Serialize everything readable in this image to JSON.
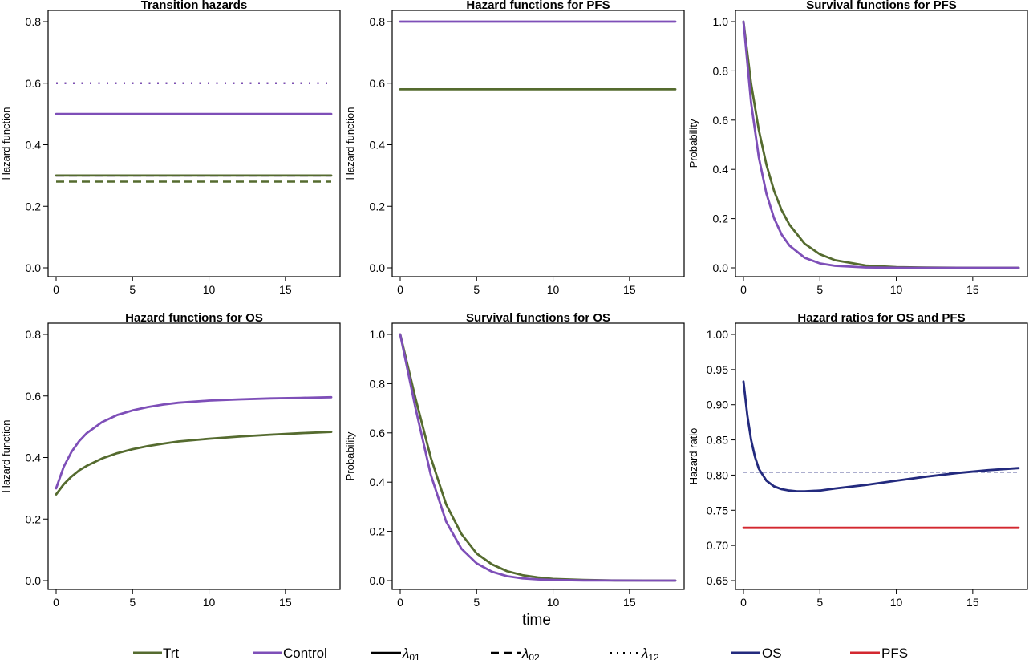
{
  "colors": {
    "trt": "#556b2f",
    "control": "#7e4fb8",
    "os": "#232a7e",
    "pfs": "#d3272f"
  },
  "xlabel": "time",
  "legend": {
    "trt": "Trt",
    "control": "Control",
    "lambda01_sym": "λ",
    "lambda01_sub": "01",
    "lambda02_sym": "λ",
    "lambda02_sub": "02",
    "lambda12_sym": "λ",
    "lambda12_sub": "12",
    "os": "OS",
    "pfs": "PFS"
  },
  "chart_data": [
    {
      "type": "line",
      "title": "Transition hazards",
      "ylabel": "Hazard function",
      "xlim": [
        0,
        18
      ],
      "ylim": [
        0,
        0.8
      ],
      "xticks": [
        0,
        5,
        10,
        15
      ],
      "yticks": [
        0.0,
        0.2,
        0.4,
        0.6,
        0.8
      ],
      "ytick_labels": [
        "0.0",
        "0.2",
        "0.4",
        "0.6",
        "0.8"
      ],
      "series": [
        {
          "group": "trt",
          "style": "dotted",
          "x": [
            0,
            18
          ],
          "y": [
            0.6,
            0.6
          ]
        },
        {
          "group": "control",
          "style": "dotted",
          "x": [
            0,
            18
          ],
          "y": [
            0.6,
            0.6
          ]
        },
        {
          "group": "control",
          "style": "solid",
          "x": [
            0,
            18
          ],
          "y": [
            0.5,
            0.5
          ]
        },
        {
          "group": "control",
          "style": "dashed",
          "x": [
            0,
            18
          ],
          "y": [
            0.3,
            0.3
          ]
        },
        {
          "group": "trt",
          "style": "solid",
          "x": [
            0,
            18
          ],
          "y": [
            0.3,
            0.3
          ]
        },
        {
          "group": "trt",
          "style": "dashed",
          "x": [
            0,
            18
          ],
          "y": [
            0.28,
            0.28
          ]
        }
      ]
    },
    {
      "type": "line",
      "title": "Hazard functions for PFS",
      "ylabel": "Hazard function",
      "xlim": [
        0,
        18
      ],
      "ylim": [
        0,
        0.8
      ],
      "xticks": [
        0,
        5,
        10,
        15
      ],
      "yticks": [
        0.0,
        0.2,
        0.4,
        0.6,
        0.8
      ],
      "ytick_labels": [
        "0.0",
        "0.2",
        "0.4",
        "0.6",
        "0.8"
      ],
      "series": [
        {
          "group": "control",
          "style": "solid",
          "x": [
            0,
            18
          ],
          "y": [
            0.8,
            0.8
          ]
        },
        {
          "group": "trt",
          "style": "solid",
          "x": [
            0,
            18
          ],
          "y": [
            0.58,
            0.58
          ]
        }
      ]
    },
    {
      "type": "line",
      "title": "Survival functions for PFS",
      "ylabel": "Probability",
      "xlim": [
        0,
        18
      ],
      "ylim": [
        0,
        1
      ],
      "xticks": [
        0,
        5,
        10,
        15
      ],
      "yticks": [
        0.0,
        0.2,
        0.4,
        0.6,
        0.8,
        1.0
      ],
      "ytick_labels": [
        "0.0",
        "0.2",
        "0.4",
        "0.6",
        "0.8",
        "1.0"
      ],
      "series": [
        {
          "group": "trt",
          "style": "solid",
          "x": [
            0,
            0.5,
            1,
            1.5,
            2,
            2.5,
            3,
            4,
            5,
            6,
            8,
            10,
            12,
            14,
            16,
            18
          ],
          "y": [
            1.0,
            0.748,
            0.56,
            0.419,
            0.313,
            0.234,
            0.176,
            0.098,
            0.055,
            0.031,
            0.0096,
            0.003,
            0.0009,
            0.0003,
            0.0001,
            0.0
          ]
        },
        {
          "group": "control",
          "style": "solid",
          "x": [
            0,
            0.5,
            1,
            1.5,
            2,
            2.5,
            3,
            4,
            5,
            6,
            8,
            10,
            12,
            14,
            16,
            18
          ],
          "y": [
            1.0,
            0.67,
            0.449,
            0.301,
            0.202,
            0.135,
            0.091,
            0.041,
            0.018,
            0.008,
            0.0017,
            0.0003,
            0.0001,
            0.0,
            0.0,
            0.0
          ]
        }
      ]
    },
    {
      "type": "line",
      "title": "Hazard functions for OS",
      "ylabel": "Hazard function",
      "xlim": [
        0,
        18
      ],
      "ylim": [
        0,
        0.8
      ],
      "xticks": [
        0,
        5,
        10,
        15
      ],
      "yticks": [
        0.0,
        0.2,
        0.4,
        0.6,
        0.8
      ],
      "ytick_labels": [
        "0.0",
        "0.2",
        "0.4",
        "0.6",
        "0.8"
      ],
      "series": [
        {
          "group": "control",
          "style": "solid",
          "x": [
            0,
            0.5,
            1,
            1.5,
            2,
            3,
            4,
            5,
            6,
            7,
            8,
            10,
            12,
            14,
            16,
            18
          ],
          "y": [
            0.3,
            0.37,
            0.418,
            0.453,
            0.479,
            0.515,
            0.538,
            0.553,
            0.564,
            0.572,
            0.578,
            0.585,
            0.589,
            0.592,
            0.594,
            0.596
          ]
        },
        {
          "group": "trt",
          "style": "solid",
          "x": [
            0,
            0.5,
            1,
            1.5,
            2,
            3,
            4,
            5,
            6,
            7,
            8,
            10,
            12,
            14,
            16,
            18
          ],
          "y": [
            0.28,
            0.313,
            0.338,
            0.358,
            0.373,
            0.397,
            0.414,
            0.427,
            0.437,
            0.445,
            0.452,
            0.461,
            0.468,
            0.474,
            0.479,
            0.483
          ]
        }
      ]
    },
    {
      "type": "line",
      "title": "Survival functions for OS",
      "ylabel": "Probability",
      "xlim": [
        0,
        18
      ],
      "ylim": [
        0,
        1
      ],
      "xticks": [
        0,
        5,
        10,
        15
      ],
      "yticks": [
        0.0,
        0.2,
        0.4,
        0.6,
        0.8,
        1.0
      ],
      "ytick_labels": [
        "0.0",
        "0.2",
        "0.4",
        "0.6",
        "0.8",
        "1.0"
      ],
      "series": [
        {
          "group": "trt",
          "style": "solid",
          "x": [
            0,
            1,
            2,
            3,
            4,
            5,
            6,
            7,
            8,
            9,
            10,
            12,
            14,
            16,
            18
          ],
          "y": [
            1.0,
            0.74,
            0.5,
            0.31,
            0.19,
            0.11,
            0.066,
            0.038,
            0.022,
            0.013,
            0.007,
            0.0025,
            0.0008,
            0.0003,
            0.0001
          ]
        },
        {
          "group": "control",
          "style": "solid",
          "x": [
            0,
            1,
            2,
            3,
            4,
            5,
            6,
            7,
            8,
            9,
            10,
            12,
            14,
            16,
            18
          ],
          "y": [
            1.0,
            0.7,
            0.43,
            0.24,
            0.13,
            0.07,
            0.036,
            0.018,
            0.009,
            0.005,
            0.0025,
            0.0006,
            0.0002,
            0.0,
            0.0
          ]
        }
      ]
    },
    {
      "type": "line",
      "title": "Hazard ratios for OS and PFS",
      "ylabel": "Hazard ratio",
      "xlim": [
        0,
        18
      ],
      "ylim": [
        0.65,
        1.0
      ],
      "xticks": [
        0,
        5,
        10,
        15
      ],
      "yticks": [
        0.65,
        0.7,
        0.75,
        0.8,
        0.85,
        0.9,
        0.95,
        1.0
      ],
      "ytick_labels": [
        "0.65",
        "0.70",
        "0.75",
        "0.80",
        "0.85",
        "0.90",
        "0.95",
        "1.00"
      ],
      "series": [
        {
          "group": "os",
          "style": "solid",
          "x": [
            0,
            0.25,
            0.5,
            0.75,
            1,
            1.5,
            2,
            2.5,
            3,
            3.5,
            4,
            5,
            6,
            8,
            10,
            12,
            14,
            16,
            18
          ],
          "y": [
            0.933,
            0.885,
            0.85,
            0.826,
            0.809,
            0.792,
            0.784,
            0.78,
            0.778,
            0.777,
            0.777,
            0.778,
            0.781,
            0.786,
            0.792,
            0.798,
            0.803,
            0.807,
            0.81
          ]
        },
        {
          "group": "os",
          "style": "thin-dashed",
          "x": [
            0,
            18
          ],
          "y": [
            0.804,
            0.804
          ]
        },
        {
          "group": "pfs",
          "style": "solid",
          "x": [
            0,
            18
          ],
          "y": [
            0.725,
            0.725
          ]
        }
      ]
    }
  ]
}
